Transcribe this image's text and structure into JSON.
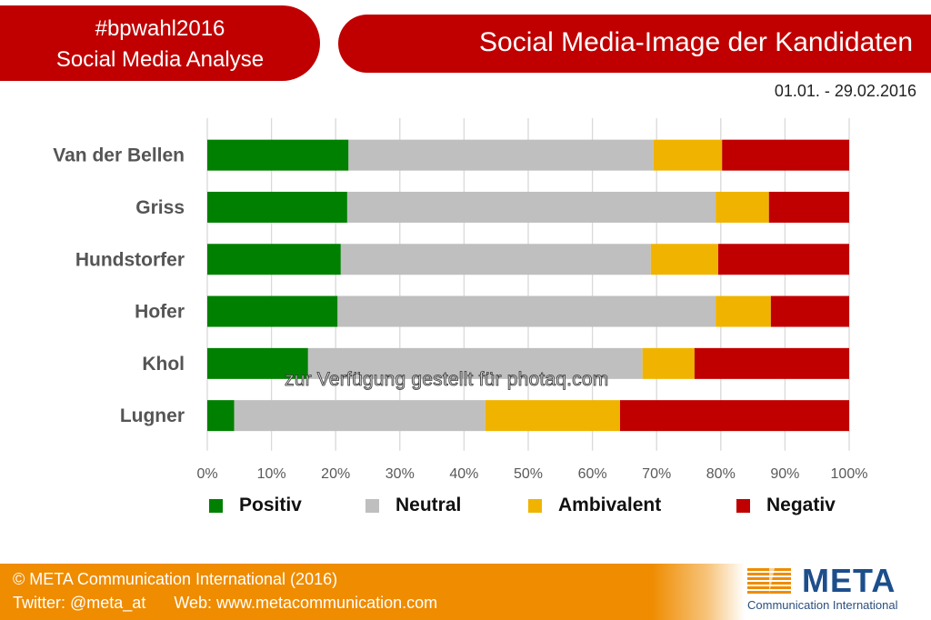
{
  "header": {
    "hashtag": "#bpwahl2016",
    "subtitle": "Social Media Analyse",
    "title": "Social Media-Image der Kandidaten",
    "date_range": "01.01. - 29.02.2016"
  },
  "colors": {
    "header_red": "#c00000",
    "positiv": "#008000",
    "neutral": "#bfbfbf",
    "ambivalent": "#f0b400",
    "negativ": "#c00000",
    "footer_orange": "#ef8c00",
    "logo_blue": "#1d4e8c"
  },
  "chart_data": {
    "type": "bar",
    "orientation": "horizontal",
    "stacked": "percent",
    "title": "Social Media-Image der Kandidaten",
    "xlabel": "",
    "ylabel": "",
    "xlim": [
      0,
      100
    ],
    "x_ticks": [
      "0%",
      "10%",
      "20%",
      "30%",
      "40%",
      "50%",
      "60%",
      "70%",
      "80%",
      "90%",
      "100%"
    ],
    "grid": "vertical",
    "legend_position": "bottom",
    "categories": [
      "Van der Bellen",
      "Griss",
      "Hundstorfer",
      "Hofer",
      "Khol",
      "Lugner"
    ],
    "series": [
      {
        "name": "Positiv",
        "color": "#008000",
        "values": [
          22.0,
          21.8,
          20.8,
          20.3,
          15.7,
          4.2
        ]
      },
      {
        "name": "Neutral",
        "color": "#bfbfbf",
        "values": [
          47.5,
          57.4,
          48.3,
          58.9,
          52.1,
          39.1
        ]
      },
      {
        "name": "Ambivalent",
        "color": "#f0b400",
        "values": [
          10.7,
          8.3,
          10.5,
          8.6,
          8.1,
          21.0
        ]
      },
      {
        "name": "Negativ",
        "color": "#c00000",
        "values": [
          19.8,
          12.5,
          20.4,
          12.2,
          24.1,
          35.7
        ]
      }
    ]
  },
  "watermark": "zur Verfügung gestellt für photaq.com",
  "footer": {
    "copyright": "© META Communication International (2016)",
    "twitter": "Twitter: @meta_at",
    "web": "Web: www.metacommunication.com"
  },
  "logo": {
    "name": "META",
    "subtitle": "Communication International"
  }
}
